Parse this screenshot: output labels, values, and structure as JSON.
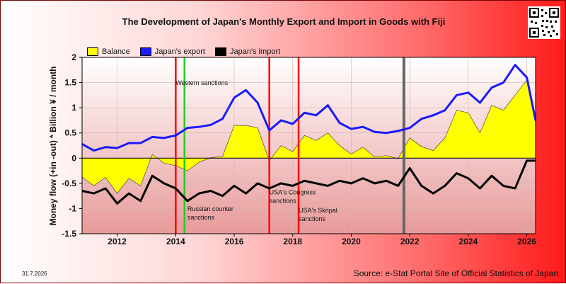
{
  "title": "The Development of Japan's Monthly Export and Import in Goods with Fiji",
  "footer_date": "31.7.2026",
  "source": "Source: e-Stat Portal Site of Official Statistics of Japan",
  "chart_data": {
    "type": "line",
    "ylabel": "Money flow (+in -out) * Billion ¥ / month",
    "xlabel": "",
    "xlim": [
      2010.8,
      2026.3
    ],
    "ylim": [
      -1.5,
      2
    ],
    "yticks": [
      "2",
      "1.5",
      "1",
      "0.5",
      "0",
      "-0.5",
      "-1",
      "-1.5"
    ],
    "xticks": [
      "2012",
      "2014",
      "2016",
      "2018",
      "2020",
      "2022",
      "2024",
      "2026"
    ],
    "legend": [
      "Balance",
      "Japan's export",
      "Japan's import"
    ],
    "legend_placement": "top",
    "colors": {
      "balance": "#ffff00",
      "export": "#1a1aff",
      "import": "#000000",
      "event_red": "#ff0000",
      "event_green": "#22cc22",
      "event_gray": "#666666"
    },
    "events": [
      {
        "x": 2014.0,
        "color": "red",
        "label": ""
      },
      {
        "x": 2014.3,
        "color": "green",
        "label": ""
      },
      {
        "x": 2017.2,
        "color": "red",
        "label": ""
      },
      {
        "x": 2018.2,
        "color": "red",
        "label": ""
      },
      {
        "x": 2021.8,
        "color": "gray",
        "label": ""
      }
    ],
    "annotations": [
      {
        "text": "Western sanctions",
        "x": 2014.0,
        "y": 1.45
      },
      {
        "text": "Russian counter",
        "x": 2014.4,
        "y": -1.05
      },
      {
        "text": "sanctions",
        "x": 2014.4,
        "y": -1.22
      },
      {
        "text": "USA's Congress",
        "x": 2017.2,
        "y": -0.72
      },
      {
        "text": "sanctions",
        "x": 2017.2,
        "y": -0.89
      },
      {
        "text": "USA's Skripal",
        "x": 2018.2,
        "y": -1.08
      },
      {
        "text": "sanctions",
        "x": 2018.2,
        "y": -1.25
      }
    ],
    "series": [
      {
        "name": "Japan's export",
        "x": [
          2010.8,
          2011.2,
          2011.6,
          2012.0,
          2012.4,
          2012.8,
          2013.2,
          2013.6,
          2014.0,
          2014.4,
          2014.8,
          2015.2,
          2015.6,
          2016.0,
          2016.4,
          2016.8,
          2017.2,
          2017.6,
          2018.0,
          2018.4,
          2018.8,
          2019.2,
          2019.6,
          2020.0,
          2020.4,
          2020.8,
          2021.2,
          2021.6,
          2022.0,
          2022.4,
          2022.8,
          2023.2,
          2023.6,
          2024.0,
          2024.4,
          2024.8,
          2025.2,
          2025.6,
          2026.0,
          2026.3
        ],
        "values": [
          0.28,
          0.15,
          0.22,
          0.2,
          0.3,
          0.3,
          0.42,
          0.4,
          0.45,
          0.6,
          0.62,
          0.66,
          0.78,
          1.2,
          1.35,
          1.1,
          0.55,
          0.75,
          0.68,
          0.9,
          0.85,
          1.05,
          0.7,
          0.58,
          0.62,
          0.52,
          0.5,
          0.54,
          0.6,
          0.78,
          0.85,
          0.95,
          1.25,
          1.3,
          1.1,
          1.4,
          1.5,
          1.85,
          1.6,
          0.75
        ]
      },
      {
        "name": "Japan's import",
        "x": [
          2010.8,
          2011.2,
          2011.6,
          2012.0,
          2012.4,
          2012.8,
          2013.2,
          2013.6,
          2014.0,
          2014.4,
          2014.8,
          2015.2,
          2015.6,
          2016.0,
          2016.4,
          2016.8,
          2017.2,
          2017.6,
          2018.0,
          2018.4,
          2018.8,
          2019.2,
          2019.6,
          2020.0,
          2020.4,
          2020.8,
          2021.2,
          2021.6,
          2022.0,
          2022.4,
          2022.8,
          2023.2,
          2023.6,
          2024.0,
          2024.4,
          2024.8,
          2025.2,
          2025.6,
          2026.0,
          2026.3
        ],
        "values": [
          -0.65,
          -0.7,
          -0.6,
          -0.9,
          -0.7,
          -0.85,
          -0.35,
          -0.5,
          -0.6,
          -0.85,
          -0.7,
          -0.65,
          -0.75,
          -0.55,
          -0.7,
          -0.5,
          -0.6,
          -0.5,
          -0.55,
          -0.45,
          -0.5,
          -0.55,
          -0.45,
          -0.5,
          -0.4,
          -0.5,
          -0.45,
          -0.55,
          -0.2,
          -0.55,
          -0.7,
          -0.55,
          -0.3,
          -0.4,
          -0.6,
          -0.35,
          -0.55,
          -0.6,
          -0.05,
          -0.05
        ]
      },
      {
        "name": "Balance",
        "x": [
          2010.8,
          2011.2,
          2011.6,
          2012.0,
          2012.4,
          2012.8,
          2013.2,
          2013.6,
          2014.0,
          2014.4,
          2014.8,
          2015.2,
          2015.6,
          2016.0,
          2016.4,
          2016.8,
          2017.2,
          2017.6,
          2018.0,
          2018.4,
          2018.8,
          2019.2,
          2019.6,
          2020.0,
          2020.4,
          2020.8,
          2021.2,
          2021.6,
          2022.0,
          2022.4,
          2022.8,
          2023.2,
          2023.6,
          2024.0,
          2024.4,
          2024.8,
          2025.2,
          2025.6,
          2026.0,
          2026.3
        ],
        "values": [
          -0.37,
          -0.55,
          -0.38,
          -0.7,
          -0.4,
          -0.55,
          0.07,
          -0.1,
          -0.15,
          -0.25,
          -0.08,
          0.01,
          0.03,
          0.65,
          0.65,
          0.6,
          -0.05,
          0.25,
          0.13,
          0.45,
          0.35,
          0.5,
          0.25,
          0.08,
          0.22,
          0.02,
          0.05,
          -0.01,
          0.4,
          0.23,
          0.15,
          0.4,
          0.95,
          0.9,
          0.5,
          1.05,
          0.95,
          1.25,
          1.55,
          0.7
        ]
      }
    ]
  }
}
